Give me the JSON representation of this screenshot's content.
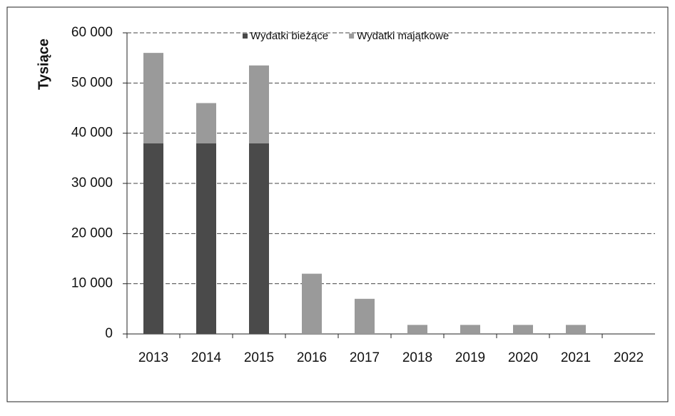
{
  "chart_data": {
    "type": "stacked_bar",
    "y_label": "Tysiące",
    "categories": [
      "2013",
      "2014",
      "2015",
      "2016",
      "2017",
      "2018",
      "2019",
      "2020",
      "2021",
      "2022"
    ],
    "series": [
      {
        "name": "Wydatki bieżące",
        "color": "#4a4a4a",
        "values": [
          38000,
          38000,
          38000,
          0,
          0,
          0,
          0,
          0,
          0,
          0
        ]
      },
      {
        "name": "Wydatki majątkowe",
        "color": "#9a9a9a",
        "values": [
          18000,
          8000,
          15500,
          12000,
          7000,
          1800,
          1800,
          1800,
          1800,
          0
        ]
      }
    ],
    "ylim": [
      0,
      60000
    ],
    "yticks": [
      {
        "value": 0,
        "label": "0"
      },
      {
        "value": 10000,
        "label": "10 000"
      },
      {
        "value": 20000,
        "label": "20 000"
      },
      {
        "value": 30000,
        "label": "30 000"
      },
      {
        "value": 40000,
        "label": "40 000"
      },
      {
        "value": 50000,
        "label": "50 000"
      },
      {
        "value": 60000,
        "label": "60 000"
      }
    ],
    "grid": true,
    "legend": "top"
  }
}
